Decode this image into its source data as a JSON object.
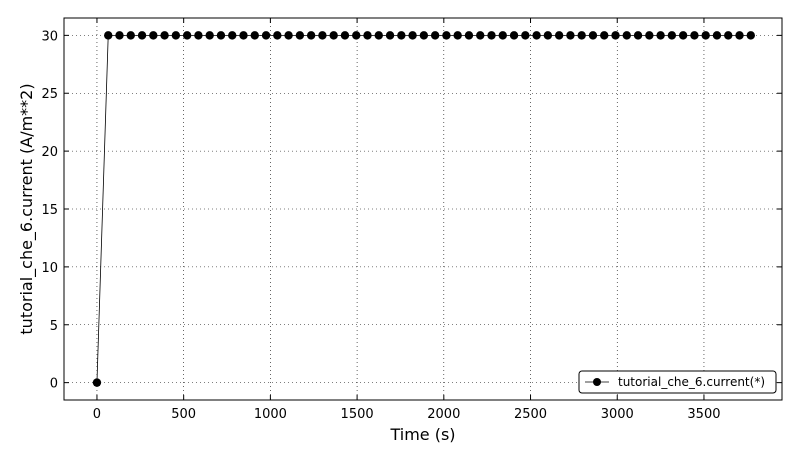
{
  "chart_data": {
    "type": "line",
    "xlabel": "Time (s)",
    "ylabel": "tutorial_che_6.current (A/m**2)",
    "xlim": [
      -190,
      3950
    ],
    "ylim": [
      -1.5,
      31.5
    ],
    "x_ticks": [
      0,
      500,
      1000,
      1500,
      2000,
      2500,
      3000,
      3500
    ],
    "y_ticks": [
      0,
      5,
      10,
      15,
      20,
      25,
      30
    ],
    "grid": true,
    "legend_position": "lower-right",
    "series": [
      {
        "name": "tutorial_che_6.current(*)",
        "color": "#000000",
        "marker": "circle",
        "x": [
          0,
          65,
          130,
          195,
          260,
          325,
          390,
          455,
          520,
          585,
          650,
          715,
          780,
          845,
          910,
          975,
          1040,
          1105,
          1170,
          1235,
          1300,
          1365,
          1430,
          1495,
          1560,
          1625,
          1690,
          1755,
          1820,
          1885,
          1950,
          2015,
          2080,
          2145,
          2210,
          2275,
          2340,
          2405,
          2470,
          2535,
          2600,
          2665,
          2730,
          2795,
          2860,
          2925,
          2990,
          3055,
          3120,
          3185,
          3250,
          3315,
          3380,
          3445,
          3510,
          3575,
          3640,
          3705,
          3770
        ],
        "y": [
          0,
          30,
          30,
          30,
          30,
          30,
          30,
          30,
          30,
          30,
          30,
          30,
          30,
          30,
          30,
          30,
          30,
          30,
          30,
          30,
          30,
          30,
          30,
          30,
          30,
          30,
          30,
          30,
          30,
          30,
          30,
          30,
          30,
          30,
          30,
          30,
          30,
          30,
          30,
          30,
          30,
          30,
          30,
          30,
          30,
          30,
          30,
          30,
          30,
          30,
          30,
          30,
          30,
          30,
          30,
          30,
          30,
          30,
          30
        ]
      }
    ]
  }
}
